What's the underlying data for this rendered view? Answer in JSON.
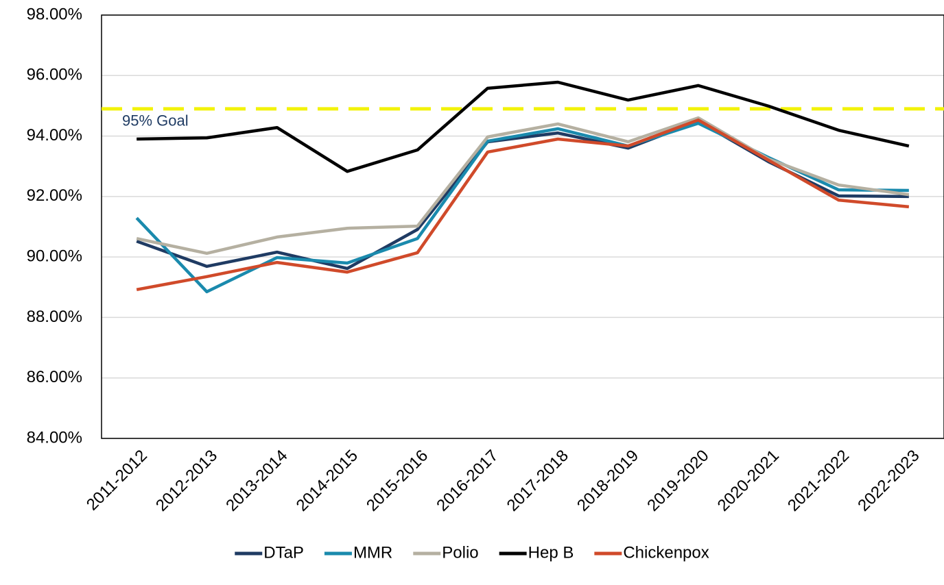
{
  "chart_data": {
    "type": "line",
    "categories": [
      "2011-2012",
      "2012-2013",
      "2013-2014",
      "2014-2015",
      "2015-2016",
      "2016-2017",
      "2017-2018",
      "2018-2019",
      "2019-2020",
      "2020-2021",
      "2021-2022",
      "2022-2023"
    ],
    "series": [
      {
        "name": "DTaP",
        "color": "#1f3b63",
        "values": [
          90.52,
          89.69,
          90.16,
          89.62,
          90.91,
          93.81,
          94.1,
          93.6,
          94.49,
          93.15,
          92.02,
          92.0
        ]
      },
      {
        "name": "MMR",
        "color": "#1a8aad",
        "values": [
          91.29,
          88.85,
          89.98,
          89.8,
          90.61,
          93.83,
          94.24,
          93.67,
          94.42,
          93.29,
          92.22,
          92.2
        ]
      },
      {
        "name": "Polio",
        "color": "#b5b0a1",
        "values": [
          90.61,
          90.12,
          90.66,
          90.95,
          91.02,
          93.97,
          94.4,
          93.81,
          94.6,
          93.24,
          92.38,
          92.06
        ]
      },
      {
        "name": "Hep B",
        "color": "#000000",
        "values": [
          93.9,
          93.94,
          94.28,
          92.83,
          93.54,
          95.58,
          95.78,
          95.19,
          95.67,
          94.99,
          94.19,
          93.67
        ]
      },
      {
        "name": "Chickenpox",
        "color": "#d04a2a",
        "values": [
          88.92,
          89.35,
          89.82,
          89.5,
          90.14,
          93.47,
          93.9,
          93.67,
          94.53,
          93.2,
          91.88,
          91.66
        ]
      }
    ],
    "goal_line": {
      "value": 94.9,
      "label": "95% Goal",
      "color": "#f2f20a"
    },
    "ylim": [
      84,
      98
    ],
    "yticks": [
      {
        "value": 84,
        "label": "84.00%"
      },
      {
        "value": 86,
        "label": "86.00%"
      },
      {
        "value": 88,
        "label": "88.00%"
      },
      {
        "value": 90,
        "label": "90.00%"
      },
      {
        "value": 92,
        "label": "92.00%"
      },
      {
        "value": 94,
        "label": "94.00%"
      },
      {
        "value": 96,
        "label": "96.00%"
      },
      {
        "value": 98,
        "label": "98.00%"
      }
    ],
    "grid": true,
    "legend": "bottom"
  }
}
